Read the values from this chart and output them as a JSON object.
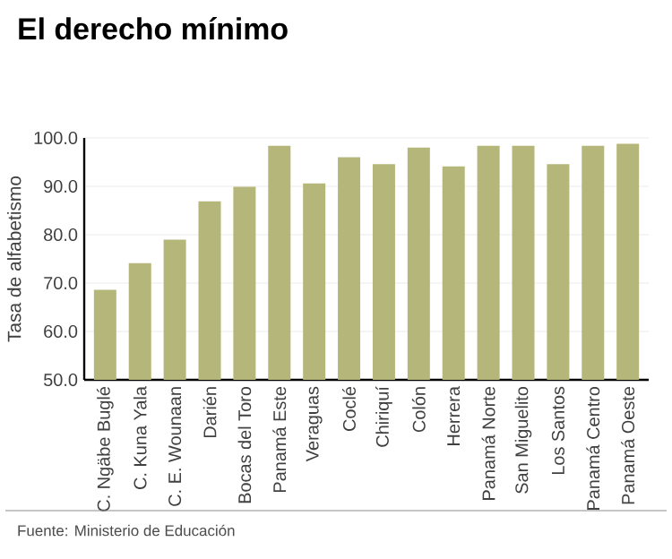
{
  "chart_data": {
    "type": "bar",
    "title": "El derecho mínimo",
    "ylabel": "Tasa de alfabetismo",
    "categories": [
      "C. Ngäbe Buglé",
      "C. Kuna Yala",
      "C. E. Wounaan",
      "Darién",
      "Bocas del Toro",
      "Panamá Este",
      "Veraguas",
      "Coclé",
      "Chiriquí",
      "Colón",
      "Herrera",
      "Panamá Norte",
      "San Miguelito",
      "Los Santos",
      "Panamá Centro",
      "Panamá Oeste"
    ],
    "values": [
      68.6,
      74.1,
      79.0,
      86.9,
      89.9,
      98.4,
      90.6,
      96.0,
      94.6,
      98.0,
      94.1,
      98.4,
      98.4,
      94.6,
      98.4,
      98.8
    ],
    "color": "#b5b77a",
    "ylim": [
      50,
      100
    ],
    "yticks": [
      {
        "value": 50,
        "label": "50.0"
      },
      {
        "value": 60,
        "label": "60.0"
      },
      {
        "value": 70,
        "label": "70.0"
      },
      {
        "value": 80,
        "label": "80.0"
      },
      {
        "value": 90,
        "label": "90.0"
      },
      {
        "value": 100,
        "label": "100.0"
      }
    ],
    "grid": "y",
    "annotations": [
      "Fuente: Ministerio de Educación"
    ]
  }
}
